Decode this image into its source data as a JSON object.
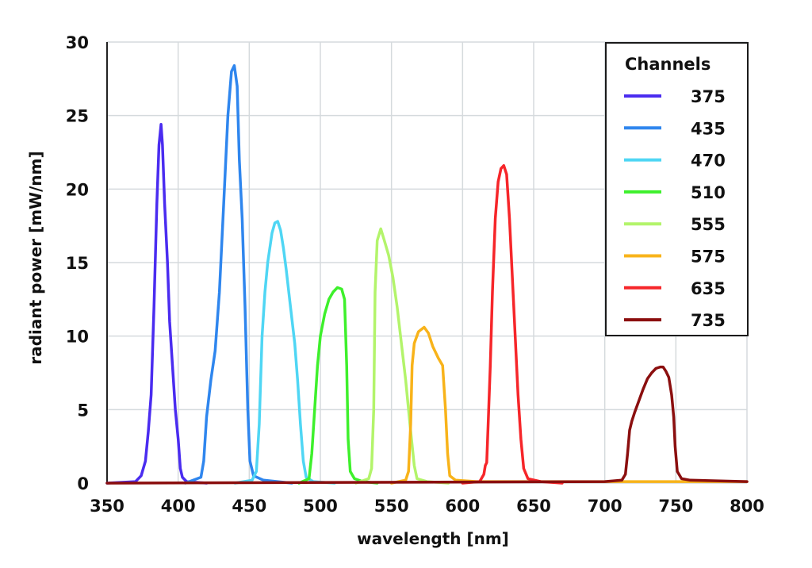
{
  "chart_data": {
    "type": "line",
    "title": "",
    "xlabel": "wavelength [nm]",
    "ylabel": "radiant power [mW/nm]",
    "xlim": [
      350,
      800
    ],
    "ylim": [
      0,
      30
    ],
    "xticks": [
      350,
      400,
      450,
      500,
      550,
      600,
      650,
      700,
      750,
      800
    ],
    "yticks": [
      0,
      5,
      10,
      15,
      20,
      25,
      30
    ],
    "grid": true,
    "legend": {
      "title": "Channels",
      "placement": "top-right"
    },
    "series": [
      {
        "name": "375",
        "color": "#4a2cf0",
        "points": [
          [
            350,
            0
          ],
          [
            370,
            0.1
          ],
          [
            374,
            0.5
          ],
          [
            377,
            1.5
          ],
          [
            379,
            3.5
          ],
          [
            381,
            6
          ],
          [
            383,
            12
          ],
          [
            385,
            19
          ],
          [
            386.5,
            23
          ],
          [
            388,
            24.4
          ],
          [
            389,
            23
          ],
          [
            390.5,
            19
          ],
          [
            392.5,
            15
          ],
          [
            394,
            11
          ],
          [
            396,
            8
          ],
          [
            398,
            5
          ],
          [
            400,
            3
          ],
          [
            401.5,
            1
          ],
          [
            403,
            0.4
          ],
          [
            406,
            0.1
          ],
          [
            420,
            0
          ]
        ]
      },
      {
        "name": "435",
        "color": "#2f86ee",
        "points": [
          [
            405,
            0
          ],
          [
            416,
            0.4
          ],
          [
            418,
            1.5
          ],
          [
            420,
            4.5
          ],
          [
            423,
            7
          ],
          [
            426,
            9
          ],
          [
            429,
            13
          ],
          [
            432,
            19
          ],
          [
            435,
            25
          ],
          [
            437.5,
            28
          ],
          [
            439.5,
            28.4
          ],
          [
            441.5,
            27
          ],
          [
            443,
            22
          ],
          [
            445,
            18
          ],
          [
            447,
            12
          ],
          [
            449,
            5
          ],
          [
            450.5,
            1.5
          ],
          [
            453,
            0.5
          ],
          [
            460,
            0.2
          ],
          [
            480,
            0
          ]
        ]
      },
      {
        "name": "470",
        "color": "#4fd6f4",
        "points": [
          [
            440,
            0
          ],
          [
            452,
            0.2
          ],
          [
            455,
            0.8
          ],
          [
            457,
            4
          ],
          [
            459,
            10
          ],
          [
            461,
            13
          ],
          [
            463,
            15
          ],
          [
            466,
            17
          ],
          [
            468,
            17.7
          ],
          [
            470,
            17.8
          ],
          [
            472,
            17.2
          ],
          [
            474,
            16
          ],
          [
            476,
            14.5
          ],
          [
            479,
            12
          ],
          [
            482,
            9.5
          ],
          [
            484,
            7
          ],
          [
            486,
            4
          ],
          [
            488,
            1.5
          ],
          [
            490,
            0.4
          ],
          [
            495,
            0.1
          ],
          [
            510,
            0
          ]
        ]
      },
      {
        "name": "510",
        "color": "#3ef02c",
        "points": [
          [
            485,
            0
          ],
          [
            492,
            0.3
          ],
          [
            494,
            2
          ],
          [
            496,
            5
          ],
          [
            498,
            8
          ],
          [
            500,
            10
          ],
          [
            503,
            11.5
          ],
          [
            506,
            12.5
          ],
          [
            509,
            13
          ],
          [
            512,
            13.3
          ],
          [
            515,
            13.2
          ],
          [
            517,
            12.5
          ],
          [
            518.5,
            8
          ],
          [
            519.5,
            3
          ],
          [
            521,
            0.8
          ],
          [
            524,
            0.3
          ],
          [
            530,
            0.1
          ],
          [
            540,
            0
          ]
        ]
      },
      {
        "name": "555",
        "color": "#b3f46b",
        "points": [
          [
            525,
            0
          ],
          [
            534,
            0.3
          ],
          [
            536,
            1
          ],
          [
            537.5,
            5
          ],
          [
            538.5,
            13
          ],
          [
            540,
            16.5
          ],
          [
            542.5,
            17.3
          ],
          [
            545,
            16.5
          ],
          [
            548,
            15.5
          ],
          [
            551,
            14
          ],
          [
            554,
            12
          ],
          [
            557,
            9.5
          ],
          [
            560,
            7
          ],
          [
            563,
            4
          ],
          [
            566,
            1.2
          ],
          [
            568,
            0.3
          ],
          [
            575,
            0.1
          ],
          [
            590,
            0
          ]
        ]
      },
      {
        "name": "575",
        "color": "#f8b31a",
        "points": [
          [
            550,
            0
          ],
          [
            560,
            0.2
          ],
          [
            562,
            0.8
          ],
          [
            563.5,
            4
          ],
          [
            564.5,
            8
          ],
          [
            566,
            9.5
          ],
          [
            569,
            10.3
          ],
          [
            573,
            10.6
          ],
          [
            576,
            10.2
          ],
          [
            579,
            9.3
          ],
          [
            583,
            8.5
          ],
          [
            586,
            8
          ],
          [
            588,
            5
          ],
          [
            589.5,
            2
          ],
          [
            591,
            0.5
          ],
          [
            595,
            0.2
          ],
          [
            610,
            0.1
          ],
          [
            800,
            0.1
          ]
        ]
      },
      {
        "name": "635",
        "color": "#f6262a",
        "points": [
          [
            600,
            0
          ],
          [
            612,
            0.1
          ],
          [
            615,
            0.6
          ],
          [
            616,
            1.2
          ],
          [
            617,
            1.4
          ],
          [
            618,
            4
          ],
          [
            619.5,
            8
          ],
          [
            621,
            13
          ],
          [
            623,
            18
          ],
          [
            625,
            20.5
          ],
          [
            627,
            21.4
          ],
          [
            629,
            21.6
          ],
          [
            631,
            21
          ],
          [
            633,
            18
          ],
          [
            635,
            14
          ],
          [
            637,
            10
          ],
          [
            639,
            6
          ],
          [
            641,
            3
          ],
          [
            643,
            1
          ],
          [
            646,
            0.3
          ],
          [
            655,
            0.1
          ],
          [
            670,
            0
          ]
        ]
      },
      {
        "name": "735",
        "color": "#8b0f0f",
        "points": [
          [
            350,
            0
          ],
          [
            700,
            0.1
          ],
          [
            712,
            0.2
          ],
          [
            714.5,
            0.6
          ],
          [
            716,
            2
          ],
          [
            717.5,
            3.6
          ],
          [
            719,
            4.2
          ],
          [
            721,
            4.8
          ],
          [
            724,
            5.6
          ],
          [
            727,
            6.4
          ],
          [
            730,
            7.1
          ],
          [
            733,
            7.5
          ],
          [
            736,
            7.8
          ],
          [
            739,
            7.9
          ],
          [
            741,
            7.9
          ],
          [
            743,
            7.6
          ],
          [
            745,
            7.2
          ],
          [
            747,
            6
          ],
          [
            748.5,
            4.5
          ],
          [
            749.5,
            2.5
          ],
          [
            751,
            0.8
          ],
          [
            754,
            0.3
          ],
          [
            760,
            0.2
          ],
          [
            800,
            0.1
          ]
        ]
      }
    ]
  }
}
